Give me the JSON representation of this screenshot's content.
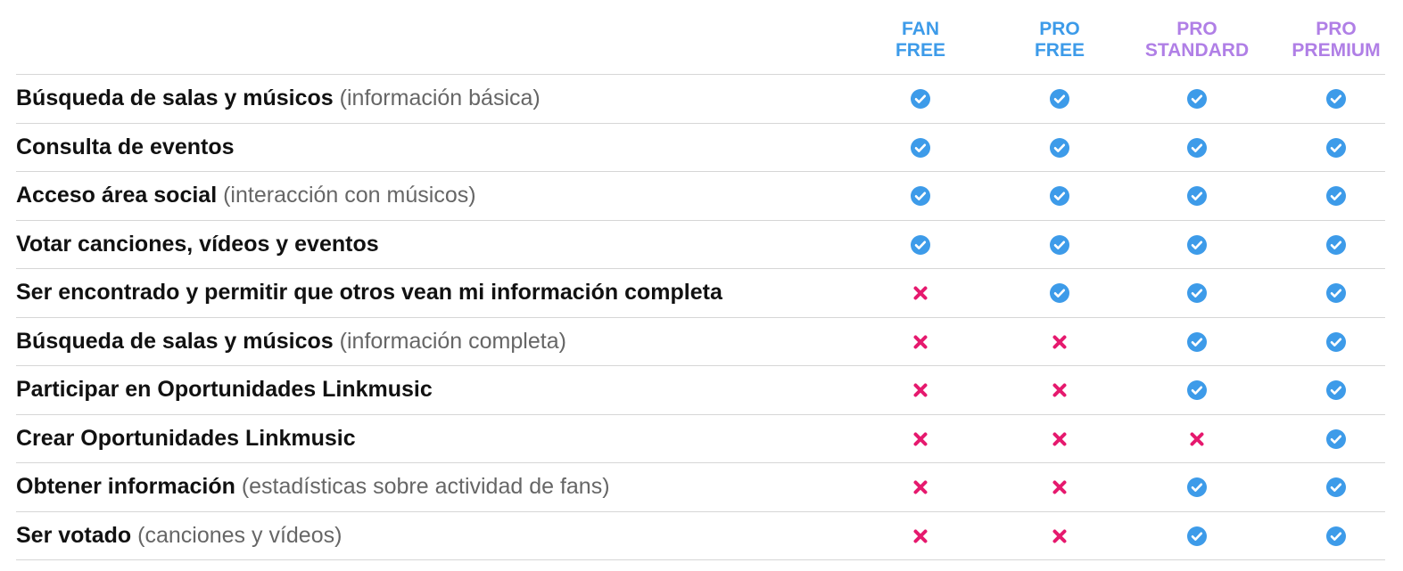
{
  "columns": [
    {
      "lines": [
        "FAN",
        "FREE"
      ],
      "color": "#3d9be9"
    },
    {
      "lines": [
        "PRO",
        "FREE"
      ],
      "color": "#3d9be9"
    },
    {
      "lines": [
        "PRO",
        "STANDARD"
      ],
      "color": "#b07fe6"
    },
    {
      "lines": [
        "PRO",
        "PREMIUM"
      ],
      "color": "#b07fe6"
    }
  ],
  "check_color": "#3d9be9",
  "cross_color": "#e6196e",
  "rows": [
    {
      "feature": "Búsqueda de salas y músicos",
      "note": "(información básica)",
      "values": [
        true,
        true,
        true,
        true
      ]
    },
    {
      "feature": "Consulta de eventos",
      "values": [
        true,
        true,
        true,
        true
      ]
    },
    {
      "feature": "Acceso área social",
      "note": "(interacción con músicos)",
      "values": [
        true,
        true,
        true,
        true
      ]
    },
    {
      "feature": "Votar canciones, vídeos y eventos",
      "values": [
        true,
        true,
        true,
        true
      ]
    },
    {
      "feature": "Ser encontrado y permitir que otros vean mi información completa",
      "values": [
        false,
        true,
        true,
        true
      ]
    },
    {
      "feature": "Búsqueda de salas y músicos",
      "note": "(información completa)",
      "values": [
        false,
        false,
        true,
        true
      ]
    },
    {
      "feature": "Participar en Oportunidades Linkmusic",
      "values": [
        false,
        false,
        true,
        true
      ]
    },
    {
      "feature": "Crear Oportunidades Linkmusic",
      "values": [
        false,
        false,
        false,
        true
      ]
    },
    {
      "feature": "Obtener información",
      "note": "(estadísticas sobre actividad de fans)",
      "values": [
        false,
        false,
        true,
        true
      ]
    },
    {
      "feature": "Ser votado",
      "note": "(canciones y vídeos)",
      "values": [
        false,
        false,
        true,
        true
      ]
    }
  ]
}
